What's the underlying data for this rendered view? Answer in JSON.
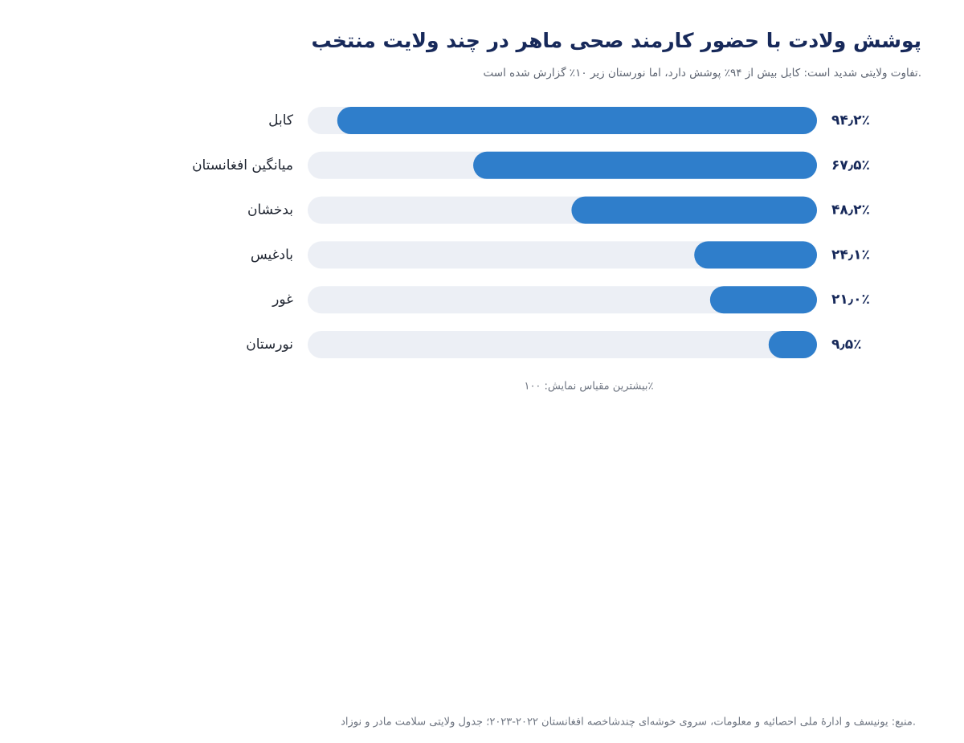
{
  "chart_data": {
    "type": "bar",
    "title": "پوشش ولادت با حضور کارمند صحی ماهر در چند ولایت منتخب",
    "subtitle": "تفاوت ولایتی شدید است: کابل بیش از ۹۴٪ پوشش دارد، اما نورستان زیر ۱۰٪ گزارش شده است.",
    "categories": [
      "کابل",
      "میانگین افغانستان",
      "بدخشان",
      "بادغیس",
      "غور",
      "نورستان"
    ],
    "values": [
      94.2,
      67.5,
      48.2,
      24.1,
      21.0,
      9.5
    ],
    "value_labels": [
      "۹۴٫۲٪",
      "۶۷٫۵٪",
      "۴۸٫۲٪",
      "۲۴٫۱٪",
      "۲۱٫۰٪",
      "۹٫۵٪"
    ],
    "color": "#2f7ecb",
    "xlim": [
      0,
      100
    ],
    "note": "بیشترین مقیاس نمایش: ۱۰۰٪",
    "source": "منبع: یونیسف و ادارهٔ ملی احصائیه و معلومات، سروی خوشه‌ای چندشاخصه افغانستان ۲۰۲۲-۲۰۲۳؛ جدول ولایتی سلامت مادر و نوزاد."
  }
}
